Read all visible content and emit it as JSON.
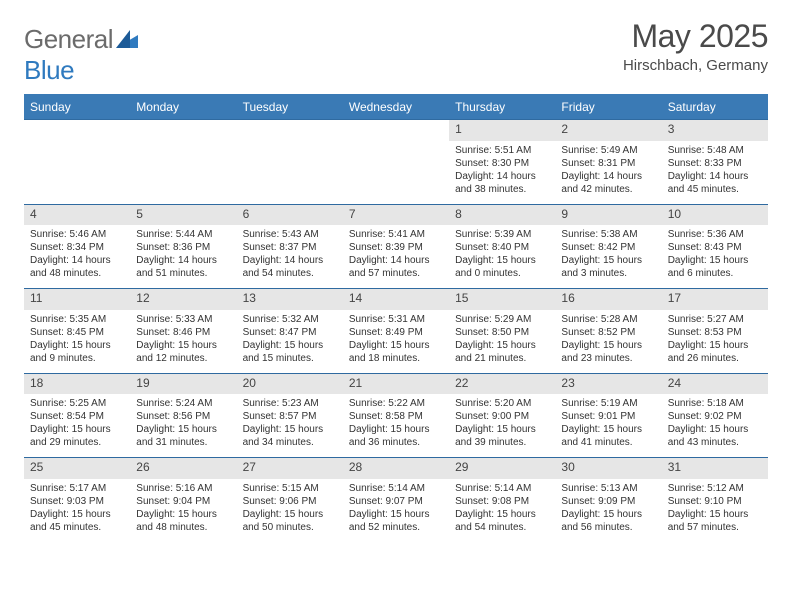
{
  "logo": {
    "brand_a": "General",
    "brand_b": "Blue"
  },
  "header": {
    "title": "May 2025",
    "location": "Hirschbach, Germany"
  },
  "colors": {
    "header_bg": "#3a7ab5",
    "header_text": "#ffffff",
    "daynum_bg": "#e6e6e6",
    "rule": "#2f6aa0",
    "body_text": "#333333",
    "title_text": "#4a4a4a",
    "logo_gray": "#6b6b6b",
    "logo_blue": "#2f7abf"
  },
  "typography": {
    "title_fontsize": 32,
    "location_fontsize": 15,
    "dow_fontsize": 12,
    "daynum_fontsize": 12,
    "cell_fontsize": 10
  },
  "dow": [
    "Sunday",
    "Monday",
    "Tuesday",
    "Wednesday",
    "Thursday",
    "Friday",
    "Saturday"
  ],
  "weeks": [
    [
      {
        "empty": true
      },
      {
        "empty": true
      },
      {
        "empty": true
      },
      {
        "empty": true
      },
      {
        "num": "1",
        "sunrise": "Sunrise: 5:51 AM",
        "sunset": "Sunset: 8:30 PM",
        "day1": "Daylight: 14 hours",
        "day2": "and 38 minutes."
      },
      {
        "num": "2",
        "sunrise": "Sunrise: 5:49 AM",
        "sunset": "Sunset: 8:31 PM",
        "day1": "Daylight: 14 hours",
        "day2": "and 42 minutes."
      },
      {
        "num": "3",
        "sunrise": "Sunrise: 5:48 AM",
        "sunset": "Sunset: 8:33 PM",
        "day1": "Daylight: 14 hours",
        "day2": "and 45 minutes."
      }
    ],
    [
      {
        "num": "4",
        "sunrise": "Sunrise: 5:46 AM",
        "sunset": "Sunset: 8:34 PM",
        "day1": "Daylight: 14 hours",
        "day2": "and 48 minutes."
      },
      {
        "num": "5",
        "sunrise": "Sunrise: 5:44 AM",
        "sunset": "Sunset: 8:36 PM",
        "day1": "Daylight: 14 hours",
        "day2": "and 51 minutes."
      },
      {
        "num": "6",
        "sunrise": "Sunrise: 5:43 AM",
        "sunset": "Sunset: 8:37 PM",
        "day1": "Daylight: 14 hours",
        "day2": "and 54 minutes."
      },
      {
        "num": "7",
        "sunrise": "Sunrise: 5:41 AM",
        "sunset": "Sunset: 8:39 PM",
        "day1": "Daylight: 14 hours",
        "day2": "and 57 minutes."
      },
      {
        "num": "8",
        "sunrise": "Sunrise: 5:39 AM",
        "sunset": "Sunset: 8:40 PM",
        "day1": "Daylight: 15 hours",
        "day2": "and 0 minutes."
      },
      {
        "num": "9",
        "sunrise": "Sunrise: 5:38 AM",
        "sunset": "Sunset: 8:42 PM",
        "day1": "Daylight: 15 hours",
        "day2": "and 3 minutes."
      },
      {
        "num": "10",
        "sunrise": "Sunrise: 5:36 AM",
        "sunset": "Sunset: 8:43 PM",
        "day1": "Daylight: 15 hours",
        "day2": "and 6 minutes."
      }
    ],
    [
      {
        "num": "11",
        "sunrise": "Sunrise: 5:35 AM",
        "sunset": "Sunset: 8:45 PM",
        "day1": "Daylight: 15 hours",
        "day2": "and 9 minutes."
      },
      {
        "num": "12",
        "sunrise": "Sunrise: 5:33 AM",
        "sunset": "Sunset: 8:46 PM",
        "day1": "Daylight: 15 hours",
        "day2": "and 12 minutes."
      },
      {
        "num": "13",
        "sunrise": "Sunrise: 5:32 AM",
        "sunset": "Sunset: 8:47 PM",
        "day1": "Daylight: 15 hours",
        "day2": "and 15 minutes."
      },
      {
        "num": "14",
        "sunrise": "Sunrise: 5:31 AM",
        "sunset": "Sunset: 8:49 PM",
        "day1": "Daylight: 15 hours",
        "day2": "and 18 minutes."
      },
      {
        "num": "15",
        "sunrise": "Sunrise: 5:29 AM",
        "sunset": "Sunset: 8:50 PM",
        "day1": "Daylight: 15 hours",
        "day2": "and 21 minutes."
      },
      {
        "num": "16",
        "sunrise": "Sunrise: 5:28 AM",
        "sunset": "Sunset: 8:52 PM",
        "day1": "Daylight: 15 hours",
        "day2": "and 23 minutes."
      },
      {
        "num": "17",
        "sunrise": "Sunrise: 5:27 AM",
        "sunset": "Sunset: 8:53 PM",
        "day1": "Daylight: 15 hours",
        "day2": "and 26 minutes."
      }
    ],
    [
      {
        "num": "18",
        "sunrise": "Sunrise: 5:25 AM",
        "sunset": "Sunset: 8:54 PM",
        "day1": "Daylight: 15 hours",
        "day2": "and 29 minutes."
      },
      {
        "num": "19",
        "sunrise": "Sunrise: 5:24 AM",
        "sunset": "Sunset: 8:56 PM",
        "day1": "Daylight: 15 hours",
        "day2": "and 31 minutes."
      },
      {
        "num": "20",
        "sunrise": "Sunrise: 5:23 AM",
        "sunset": "Sunset: 8:57 PM",
        "day1": "Daylight: 15 hours",
        "day2": "and 34 minutes."
      },
      {
        "num": "21",
        "sunrise": "Sunrise: 5:22 AM",
        "sunset": "Sunset: 8:58 PM",
        "day1": "Daylight: 15 hours",
        "day2": "and 36 minutes."
      },
      {
        "num": "22",
        "sunrise": "Sunrise: 5:20 AM",
        "sunset": "Sunset: 9:00 PM",
        "day1": "Daylight: 15 hours",
        "day2": "and 39 minutes."
      },
      {
        "num": "23",
        "sunrise": "Sunrise: 5:19 AM",
        "sunset": "Sunset: 9:01 PM",
        "day1": "Daylight: 15 hours",
        "day2": "and 41 minutes."
      },
      {
        "num": "24",
        "sunrise": "Sunrise: 5:18 AM",
        "sunset": "Sunset: 9:02 PM",
        "day1": "Daylight: 15 hours",
        "day2": "and 43 minutes."
      }
    ],
    [
      {
        "num": "25",
        "sunrise": "Sunrise: 5:17 AM",
        "sunset": "Sunset: 9:03 PM",
        "day1": "Daylight: 15 hours",
        "day2": "and 45 minutes."
      },
      {
        "num": "26",
        "sunrise": "Sunrise: 5:16 AM",
        "sunset": "Sunset: 9:04 PM",
        "day1": "Daylight: 15 hours",
        "day2": "and 48 minutes."
      },
      {
        "num": "27",
        "sunrise": "Sunrise: 5:15 AM",
        "sunset": "Sunset: 9:06 PM",
        "day1": "Daylight: 15 hours",
        "day2": "and 50 minutes."
      },
      {
        "num": "28",
        "sunrise": "Sunrise: 5:14 AM",
        "sunset": "Sunset: 9:07 PM",
        "day1": "Daylight: 15 hours",
        "day2": "and 52 minutes."
      },
      {
        "num": "29",
        "sunrise": "Sunrise: 5:14 AM",
        "sunset": "Sunset: 9:08 PM",
        "day1": "Daylight: 15 hours",
        "day2": "and 54 minutes."
      },
      {
        "num": "30",
        "sunrise": "Sunrise: 5:13 AM",
        "sunset": "Sunset: 9:09 PM",
        "day1": "Daylight: 15 hours",
        "day2": "and 56 minutes."
      },
      {
        "num": "31",
        "sunrise": "Sunrise: 5:12 AM",
        "sunset": "Sunset: 9:10 PM",
        "day1": "Daylight: 15 hours",
        "day2": "and 57 minutes."
      }
    ]
  ]
}
